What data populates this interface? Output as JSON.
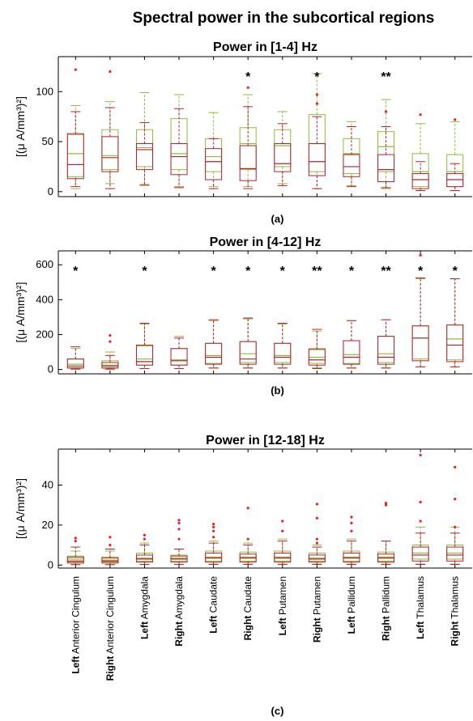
{
  "figure_title": "Spectral power in the subcortical regions",
  "colors": {
    "series_a": "#8fbc3a",
    "series_b": "#b22234",
    "outlier": "#e8202a",
    "axis": "#000000"
  },
  "chart_data": [
    {
      "type": "box",
      "panel_label": "(a)",
      "title": "Power in [1-4] Hz",
      "ylabel": "[(μ A/mm³)²]",
      "ylim": [
        -5,
        135
      ],
      "yticks": [
        0,
        50,
        100
      ],
      "significance": [
        "",
        "",
        "",
        "",
        "",
        "*",
        "",
        "*",
        "",
        "**",
        "",
        ""
      ],
      "series": [
        {
          "boxes": [
            {
              "q1": 15,
              "median": 38,
              "q3": 57,
              "lo": 3,
              "hi": 86,
              "out": []
            },
            {
              "q1": 22,
              "median": 36,
              "q3": 62,
              "lo": 8,
              "hi": 90,
              "out": []
            },
            {
              "q1": 25,
              "median": 44,
              "q3": 62,
              "lo": 6,
              "hi": 99,
              "out": []
            },
            {
              "q1": 22,
              "median": 38,
              "q3": 73,
              "lo": 5,
              "hi": 97,
              "out": []
            },
            {
              "q1": 20,
              "median": 35,
              "q3": 53,
              "lo": 5,
              "hi": 79,
              "out": []
            },
            {
              "q1": 22,
              "median": 48,
              "q3": 64,
              "lo": 5,
              "hi": 97,
              "out": []
            },
            {
              "q1": 25,
              "median": 46,
              "q3": 62,
              "lo": 8,
              "hi": 80,
              "out": []
            },
            {
              "q1": 20,
              "median": 48,
              "q3": 77,
              "lo": 3,
              "hi": 118,
              "out": []
            },
            {
              "q1": 18,
              "median": 38,
              "q3": 53,
              "lo": 6,
              "hi": 70,
              "out": []
            },
            {
              "q1": 20,
              "median": 45,
              "q3": 60,
              "lo": 3,
              "hi": 92,
              "out": []
            },
            {
              "q1": 5,
              "median": 20,
              "q3": 38,
              "lo": 1,
              "hi": 68,
              "out": []
            },
            {
              "q1": 5,
              "median": 20,
              "q3": 37,
              "lo": 1,
              "hi": 70,
              "out": []
            }
          ]
        },
        {
          "boxes": [
            {
              "q1": 13,
              "median": 27,
              "q3": 58,
              "lo": 5,
              "hi": 80,
              "out": [
                122
              ]
            },
            {
              "q1": 20,
              "median": 34,
              "q3": 55,
              "lo": 3,
              "hi": 84,
              "out": [
                120
              ]
            },
            {
              "q1": 22,
              "median": 42,
              "q3": 48,
              "lo": 7,
              "hi": 69,
              "out": []
            },
            {
              "q1": 17,
              "median": 35,
              "q3": 48,
              "lo": 4,
              "hi": 83,
              "out": []
            },
            {
              "q1": 12,
              "median": 30,
              "q3": 43,
              "lo": 3,
              "hi": 53,
              "out": []
            },
            {
              "q1": 11,
              "median": 23,
              "q3": 46,
              "lo": 3,
              "hi": 85,
              "out": [
                104
              ]
            },
            {
              "q1": 20,
              "median": 28,
              "q3": 48,
              "lo": 6,
              "hi": 68,
              "out": []
            },
            {
              "q1": 16,
              "median": 30,
              "q3": 48,
              "lo": 3,
              "hi": 75,
              "out": [
                88,
                97
              ]
            },
            {
              "q1": 15,
              "median": 25,
              "q3": 37,
              "lo": 5,
              "hi": 65,
              "out": []
            },
            {
              "q1": 10,
              "median": 22,
              "q3": 37,
              "lo": 4,
              "hi": 65,
              "out": [
                80
              ]
            },
            {
              "q1": 3,
              "median": 12,
              "q3": 18,
              "lo": 1,
              "hi": 30,
              "out": [
                77
              ]
            },
            {
              "q1": 5,
              "median": 12,
              "q3": 18,
              "lo": 1,
              "hi": 28,
              "out": [
                72
              ]
            }
          ]
        }
      ]
    },
    {
      "type": "box",
      "panel_label": "(b)",
      "title": "Power in [4-12] Hz",
      "ylabel": "[(μ A/mm³)²]",
      "ylim": [
        -25,
        680
      ],
      "yticks": [
        0,
        200,
        400,
        600
      ],
      "significance": [
        "*",
        "",
        "*",
        "",
        "*",
        "*",
        "*",
        "**",
        "*",
        "**",
        "*",
        "*"
      ],
      "series": [
        {
          "boxes": [
            {
              "q1": 10,
              "median": 30,
              "q3": 60,
              "lo": 2,
              "hi": 120,
              "out": []
            },
            {
              "q1": 10,
              "median": 25,
              "q3": 50,
              "lo": 2,
              "hi": 100,
              "out": []
            },
            {
              "q1": 25,
              "median": 60,
              "q3": 135,
              "lo": 5,
              "hi": 260,
              "out": []
            },
            {
              "q1": 25,
              "median": 55,
              "q3": 120,
              "lo": 5,
              "hi": 190,
              "out": []
            },
            {
              "q1": 35,
              "median": 80,
              "q3": 150,
              "lo": 10,
              "hi": 280,
              "out": []
            },
            {
              "q1": 40,
              "median": 90,
              "q3": 160,
              "lo": 10,
              "hi": 290,
              "out": []
            },
            {
              "q1": 40,
              "median": 80,
              "q3": 150,
              "lo": 10,
              "hi": 260,
              "out": []
            },
            {
              "q1": 35,
              "median": 70,
              "q3": 120,
              "lo": 10,
              "hi": 220,
              "out": []
            },
            {
              "q1": 35,
              "median": 85,
              "q3": 165,
              "lo": 10,
              "hi": 280,
              "out": []
            },
            {
              "q1": 40,
              "median": 90,
              "q3": 190,
              "lo": 10,
              "hi": 285,
              "out": []
            },
            {
              "q1": 60,
              "median": 180,
              "q3": 250,
              "lo": 15,
              "hi": 520,
              "out": []
            },
            {
              "q1": 55,
              "median": 175,
              "q3": 255,
              "lo": 15,
              "hi": 520,
              "out": []
            }
          ]
        },
        {
          "boxes": [
            {
              "q1": 8,
              "median": 20,
              "q3": 60,
              "lo": 2,
              "hi": 130,
              "out": []
            },
            {
              "q1": 8,
              "median": 20,
              "q3": 40,
              "lo": 2,
              "hi": 80,
              "out": [
                160,
                195
              ]
            },
            {
              "q1": 25,
              "median": 45,
              "q3": 140,
              "lo": 5,
              "hi": 265,
              "out": []
            },
            {
              "q1": 25,
              "median": 50,
              "q3": 120,
              "lo": 5,
              "hi": 180,
              "out": []
            },
            {
              "q1": 30,
              "median": 70,
              "q3": 150,
              "lo": 8,
              "hi": 285,
              "out": []
            },
            {
              "q1": 30,
              "median": 60,
              "q3": 160,
              "lo": 8,
              "hi": 295,
              "out": []
            },
            {
              "q1": 30,
              "median": 70,
              "q3": 150,
              "lo": 8,
              "hi": 265,
              "out": []
            },
            {
              "q1": 25,
              "median": 55,
              "q3": 115,
              "lo": 5,
              "hi": 230,
              "out": []
            },
            {
              "q1": 30,
              "median": 70,
              "q3": 165,
              "lo": 8,
              "hi": 280,
              "out": []
            },
            {
              "q1": 30,
              "median": 70,
              "q3": 190,
              "lo": 8,
              "hi": 285,
              "out": []
            },
            {
              "q1": 50,
              "median": 180,
              "q3": 250,
              "lo": 15,
              "hi": 525,
              "out": [
                655
              ]
            },
            {
              "q1": 45,
              "median": 140,
              "q3": 255,
              "lo": 15,
              "hi": 520,
              "out": []
            }
          ]
        }
      ]
    },
    {
      "type": "box",
      "panel_label": "(c)",
      "title": "Power in [12-18] Hz",
      "ylabel": "[(μ A/mm³)²]",
      "ylim": [
        -1.5,
        58
      ],
      "yticks": [
        0,
        20,
        40
      ],
      "significance": [
        "",
        "",
        "",
        "",
        "",
        "",
        "",
        "",
        "",
        "",
        "",
        ""
      ],
      "series": [
        {
          "boxes": [
            {
              "q1": 1.5,
              "median": 3,
              "q3": 4.5,
              "lo": 0.3,
              "hi": 7,
              "out": []
            },
            {
              "q1": 1.5,
              "median": 2.5,
              "q3": 4,
              "lo": 0.3,
              "hi": 7,
              "out": []
            },
            {
              "q1": 2,
              "median": 3.5,
              "q3": 6,
              "lo": 0.3,
              "hi": 11,
              "out": []
            },
            {
              "q1": 2,
              "median": 3.5,
              "q3": 5,
              "lo": 0.3,
              "hi": 8,
              "out": []
            },
            {
              "q1": 2,
              "median": 4,
              "q3": 7,
              "lo": 0.5,
              "hi": 12,
              "out": []
            },
            {
              "q1": 2,
              "median": 4,
              "q3": 6.5,
              "lo": 0.5,
              "hi": 11,
              "out": []
            },
            {
              "q1": 2,
              "median": 4,
              "q3": 7,
              "lo": 0.5,
              "hi": 13,
              "out": []
            },
            {
              "q1": 2,
              "median": 3.5,
              "q3": 6,
              "lo": 0.5,
              "hi": 10,
              "out": []
            },
            {
              "q1": 2,
              "median": 4,
              "q3": 7,
              "lo": 0.5,
              "hi": 13,
              "out": []
            },
            {
              "q1": 2,
              "median": 4,
              "q3": 6.5,
              "lo": 0.5,
              "hi": 12,
              "out": []
            },
            {
              "q1": 3,
              "median": 6,
              "q3": 10,
              "lo": 0.5,
              "hi": 19,
              "out": []
            },
            {
              "q1": 3,
              "median": 6,
              "q3": 10,
              "lo": 0.5,
              "hi": 19,
              "out": []
            }
          ]
        },
        {
          "boxes": [
            {
              "q1": 1,
              "median": 2,
              "q3": 4,
              "lo": 0.2,
              "hi": 9,
              "out": [
                12,
                13.5
              ]
            },
            {
              "q1": 1,
              "median": 2,
              "q3": 3.5,
              "lo": 0.2,
              "hi": 8,
              "out": [
                10,
                14
              ]
            },
            {
              "q1": 1.5,
              "median": 3,
              "q3": 5,
              "lo": 0.3,
              "hi": 10,
              "out": [
                13,
                15
              ]
            },
            {
              "q1": 1.5,
              "median": 3,
              "q3": 4.5,
              "lo": 0.3,
              "hi": 8,
              "out": [
                13,
                18,
                21,
                22.5
              ]
            },
            {
              "q1": 1.5,
              "median": 3.5,
              "q3": 6,
              "lo": 0.3,
              "hi": 11,
              "out": [
                14,
                17,
                19,
                20.5
              ]
            },
            {
              "q1": 1.5,
              "median": 3.5,
              "q3": 5.5,
              "lo": 0.3,
              "hi": 10,
              "out": [
                13,
                28.5
              ]
            },
            {
              "q1": 1.5,
              "median": 3.5,
              "q3": 6,
              "lo": 0.3,
              "hi": 12,
              "out": [
                17,
                22
              ]
            },
            {
              "q1": 1.5,
              "median": 3,
              "q3": 5,
              "lo": 0.3,
              "hi": 9,
              "out": [
                11,
                13,
                23.5,
                30.5
              ]
            },
            {
              "q1": 1.5,
              "median": 3.5,
              "q3": 6,
              "lo": 0.3,
              "hi": 12,
              "out": [
                17,
                21,
                24
              ]
            },
            {
              "q1": 1.5,
              "median": 3.5,
              "q3": 5.5,
              "lo": 0.3,
              "hi": 12,
              "out": [
                30,
                31
              ]
            },
            {
              "q1": 2,
              "median": 5,
              "q3": 9,
              "lo": 0.3,
              "hi": 16,
              "out": [
                22,
                31.5,
                55
              ]
            },
            {
              "q1": 2,
              "median": 5,
              "q3": 9,
              "lo": 0.3,
              "hi": 16,
              "out": [
                19,
                33,
                49
              ]
            }
          ]
        }
      ]
    }
  ],
  "categories": [
    {
      "bold": "Left",
      "rest": "Anterior Cingulum"
    },
    {
      "bold": "Right",
      "rest": "Anterior Cingulum"
    },
    {
      "bold": "Left",
      "rest": "Amygdala"
    },
    {
      "bold": "Right",
      "rest": "Amygdala"
    },
    {
      "bold": "Left",
      "rest": "Caudate"
    },
    {
      "bold": "Right",
      "rest": "Caudate"
    },
    {
      "bold": "Left",
      "rest": "Putamen"
    },
    {
      "bold": "Right",
      "rest": "Putamen"
    },
    {
      "bold": "Left",
      "rest": "Pallidum"
    },
    {
      "bold": "Right",
      "rest": "Pallidum"
    },
    {
      "bold": "Left",
      "rest": "Thalamus"
    },
    {
      "bold": "Right",
      "rest": "Thalamus"
    }
  ]
}
